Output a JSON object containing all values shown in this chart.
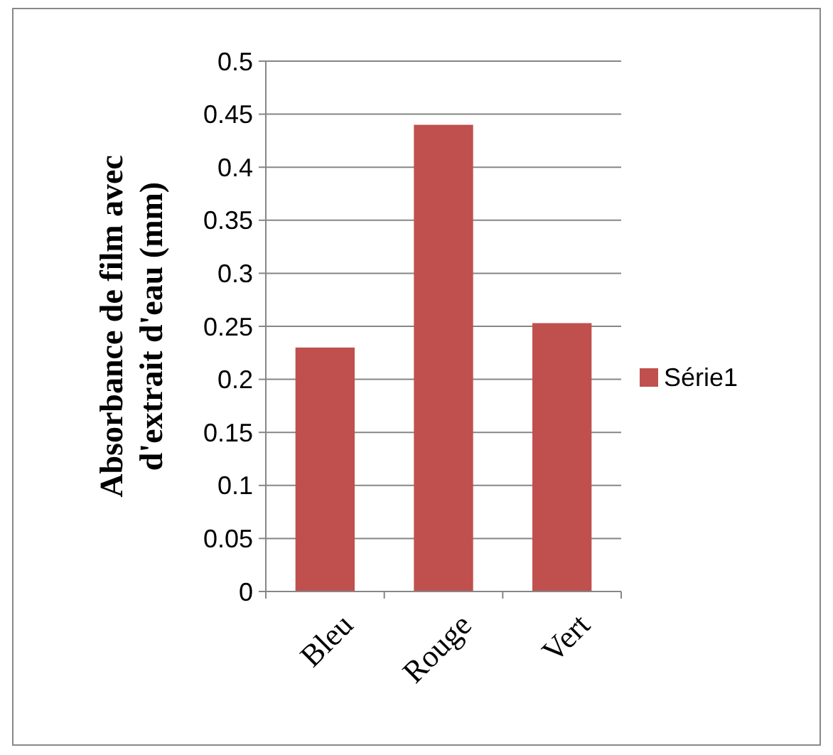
{
  "chart_data": {
    "type": "bar",
    "ylabel": "Absorbance de film  avec\nd'extrait d'eau (mm)",
    "categories": [
      "Bleu",
      "Rouge",
      "Vert"
    ],
    "series": [
      {
        "name": "Série1",
        "color": "#c0504d",
        "values": [
          0.23,
          0.44,
          0.253
        ]
      }
    ],
    "ylim": [
      0,
      0.5
    ],
    "yticks": [
      0,
      0.05,
      0.1,
      0.15,
      0.2,
      0.25,
      0.3,
      0.35,
      0.4,
      0.45,
      0.5
    ],
    "grid": "y",
    "legend": "right"
  }
}
